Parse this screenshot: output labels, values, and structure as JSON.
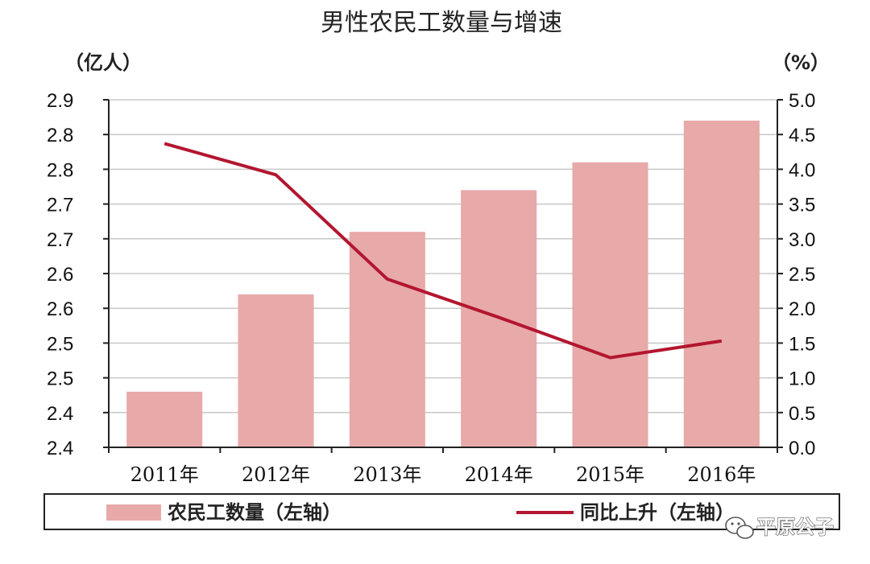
{
  "chart_data": {
    "type": "bar",
    "title": "男性农民工数量与增速",
    "categories": [
      "2011年",
      "2012年",
      "2013年",
      "2014年",
      "2015年",
      "2016年"
    ],
    "series": [
      {
        "name": "农民工数量（左轴）",
        "chart": "bar",
        "axis": "left",
        "color": "#e8a9a9",
        "values": [
          2.48,
          2.62,
          2.71,
          2.77,
          2.81,
          2.87
        ]
      },
      {
        "name": "同比上升（左轴）",
        "chart": "line",
        "axis": "right",
        "color": "#b3162f",
        "values": [
          4.37,
          3.92,
          2.42,
          1.87,
          1.29,
          1.53
        ]
      }
    ],
    "y_left": {
      "unit": "（亿人）",
      "ylim": [
        2.4,
        2.9
      ],
      "tick_labels": [
        "2.4",
        "2.4",
        "2.5",
        "2.5",
        "2.6",
        "2.6",
        "2.7",
        "2.7",
        "2.8",
        "2.8",
        "2.9"
      ]
    },
    "y_right": {
      "unit": "（%）",
      "ylim": [
        0.0,
        5.0
      ],
      "tick_labels": [
        "0.0",
        "0.5",
        "1.0",
        "1.5",
        "2.0",
        "2.5",
        "3.0",
        "3.5",
        "4.0",
        "4.5",
        "5.0"
      ]
    },
    "grid": true,
    "legend_position": "bottom"
  },
  "watermark": "平原公子",
  "watermark_icon": "wechat-icon"
}
